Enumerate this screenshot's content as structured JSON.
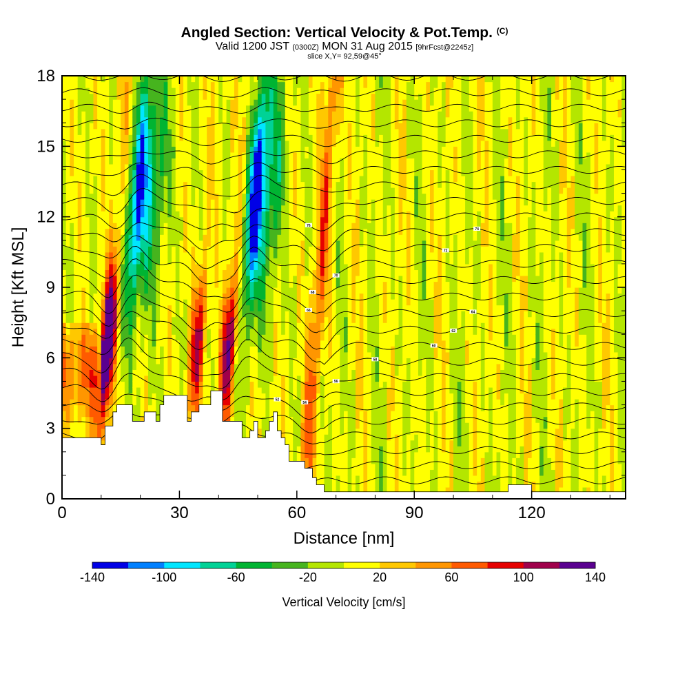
{
  "header": {
    "title_main": "Angled Section: Vertical Velocity & Pot.Temp.",
    "title_unit": "(C)",
    "valid_a": "Valid 1200 JST",
    "valid_b": "(0300Z)",
    "valid_c": "MON 31 Aug 2015",
    "valid_d": "[9hrFcst@2245z]",
    "slice": "slice X,Y= 92,59@45°"
  },
  "chart_data": {
    "type": "heatmap",
    "xlabel": "Distance [nm]",
    "ylabel": "Height [Kft MSL]",
    "xlim": [
      0,
      144
    ],
    "ylim": [
      0,
      18
    ],
    "x_ticks": [
      "0",
      "30",
      "60",
      "90",
      "120"
    ],
    "x_tick_values": [
      0,
      30,
      60,
      90,
      120
    ],
    "y_ticks": [
      "0",
      "3",
      "6",
      "9",
      "12",
      "15",
      "18"
    ],
    "y_tick_values": [
      0,
      3,
      6,
      9,
      12,
      15,
      18
    ],
    "colorbar": {
      "label": "Vertical Velocity [cm/s]",
      "range": [
        -140,
        140
      ],
      "tick_labels": [
        "-140",
        "-100",
        "-60",
        "-20",
        "20",
        "60",
        "100",
        "140"
      ],
      "tick_values": [
        -140,
        -100,
        -60,
        -20,
        20,
        60,
        100,
        140
      ],
      "colors": [
        "#0000e6",
        "#0080ff",
        "#00e6ff",
        "#00d296",
        "#00b432",
        "#46b41e",
        "#b4e600",
        "#ffff00",
        "#ffc800",
        "#ff9600",
        "#ff5a00",
        "#e60000",
        "#a0004b",
        "#5a0090"
      ]
    },
    "features": [
      {
        "kind": "updraft",
        "x": 10,
        "value": 140
      },
      {
        "kind": "downdraft",
        "x": 15,
        "value": -120
      },
      {
        "kind": "updraft",
        "x": 33,
        "value": 80
      },
      {
        "kind": "updraft",
        "x": 41,
        "value": 100
      },
      {
        "kind": "downdraft",
        "x": 45,
        "value": -140
      },
      {
        "kind": "updraft",
        "x": 63,
        "value": 60
      }
    ],
    "terrain": [
      [
        0,
        2.6
      ],
      [
        10,
        2.6
      ],
      [
        10,
        2.3
      ],
      [
        11,
        2.3
      ],
      [
        11,
        3.1
      ],
      [
        13,
        3.1
      ],
      [
        13,
        3.7
      ],
      [
        14,
        3.7
      ],
      [
        14,
        4.0
      ],
      [
        18,
        4.0
      ],
      [
        18,
        3.3
      ],
      [
        21,
        3.3
      ],
      [
        21,
        3.7
      ],
      [
        24,
        3.7
      ],
      [
        24,
        3.3
      ],
      [
        25,
        3.3
      ],
      [
        25,
        4.0
      ],
      [
        26,
        4.0
      ],
      [
        26,
        4.4
      ],
      [
        32,
        4.4
      ],
      [
        32,
        3.3
      ],
      [
        33,
        3.3
      ],
      [
        33,
        3.7
      ],
      [
        35,
        3.7
      ],
      [
        35,
        4.0
      ],
      [
        38,
        4.0
      ],
      [
        38,
        4.6
      ],
      [
        41,
        4.6
      ],
      [
        41,
        3.3
      ],
      [
        46,
        3.3
      ],
      [
        46,
        2.6
      ],
      [
        48,
        2.6
      ],
      [
        48,
        2.9
      ],
      [
        49,
        2.9
      ],
      [
        49,
        3.3
      ],
      [
        50,
        3.3
      ],
      [
        50,
        2.6
      ],
      [
        52,
        2.6
      ],
      [
        52,
        2.9
      ],
      [
        53,
        2.9
      ],
      [
        53,
        3.3
      ],
      [
        54,
        3.3
      ],
      [
        54,
        3.7
      ],
      [
        55,
        3.7
      ],
      [
        55,
        2.9
      ],
      [
        56,
        2.9
      ],
      [
        56,
        2.6
      ],
      [
        57,
        2.6
      ],
      [
        57,
        2.3
      ],
      [
        58,
        2.3
      ],
      [
        58,
        1.6
      ],
      [
        62,
        1.6
      ],
      [
        62,
        1.3
      ],
      [
        64,
        1.3
      ],
      [
        64,
        0.9
      ],
      [
        65,
        0.9
      ],
      [
        65,
        0.6
      ],
      [
        67,
        0.6
      ],
      [
        67,
        0.3
      ],
      [
        114,
        0.3
      ],
      [
        114,
        0.6
      ],
      [
        120,
        0.6
      ],
      [
        120,
        0.3
      ],
      [
        144,
        0.3
      ]
    ],
    "isentropes": {
      "labeled_values": [
        "42",
        "44",
        "46",
        "48",
        "50",
        "52",
        "54",
        "56",
        "58",
        "60",
        "62",
        "64",
        "66",
        "68",
        "70",
        "72",
        "74",
        "76"
      ]
    }
  }
}
